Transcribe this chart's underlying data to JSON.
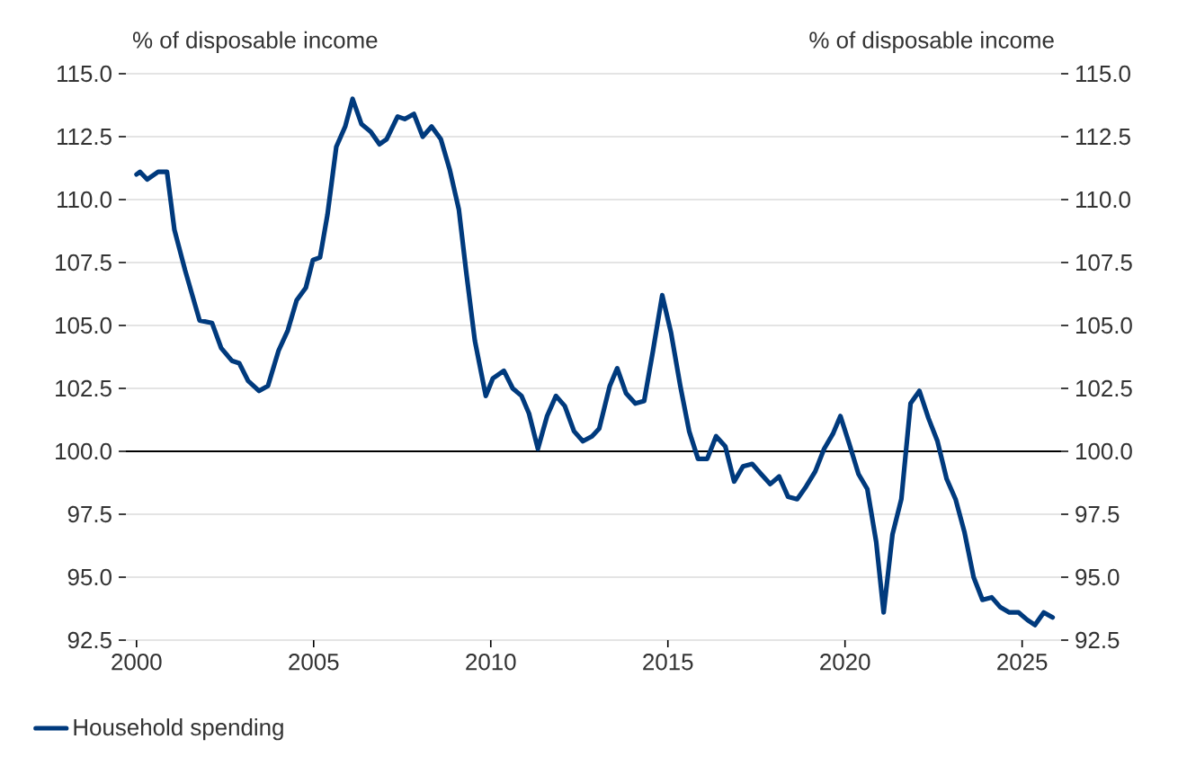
{
  "chart_data": {
    "type": "line",
    "ylabel": "% of disposable income",
    "y2label": "% of disposable income",
    "x": [
      2000.0,
      2000.1,
      2000.3,
      2000.61,
      2000.86,
      2001.07,
      2001.37,
      2001.78,
      2002.13,
      2002.39,
      2002.69,
      2002.9,
      2003.15,
      2003.46,
      2003.71,
      2004.01,
      2004.27,
      2004.52,
      2004.78,
      2004.98,
      2005.18,
      2005.39,
      2005.64,
      2005.89,
      2006.1,
      2006.35,
      2006.61,
      2006.86,
      2007.06,
      2007.37,
      2007.57,
      2007.83,
      2008.08,
      2008.33,
      2008.59,
      2008.84,
      2009.1,
      2009.3,
      2009.55,
      2009.86,
      2010.06,
      2010.37,
      2010.62,
      2010.87,
      2011.08,
      2011.33,
      2011.59,
      2011.84,
      2012.09,
      2012.35,
      2012.6,
      2012.86,
      2013.06,
      2013.36,
      2013.57,
      2013.82,
      2014.08,
      2014.33,
      2014.58,
      2014.84,
      2015.09,
      2015.35,
      2015.6,
      2015.85,
      2016.11,
      2016.36,
      2016.62,
      2016.87,
      2017.12,
      2017.38,
      2017.63,
      2017.89,
      2018.14,
      2018.39,
      2018.65,
      2018.9,
      2019.16,
      2019.41,
      2019.66,
      2019.87,
      2020.12,
      2020.38,
      2020.63,
      2020.88,
      2021.09,
      2021.34,
      2021.59,
      2021.85,
      2022.1,
      2022.36,
      2022.61,
      2022.87,
      2023.12,
      2023.37,
      2023.63,
      2023.88,
      2024.14,
      2024.39,
      2024.64,
      2024.9,
      2025.15,
      2025.36,
      2025.61,
      2025.86
    ],
    "series": [
      {
        "name": "Household spending",
        "color": "#003a7d",
        "values": [
          111.0,
          111.1,
          110.8,
          111.1,
          111.1,
          108.8,
          107.2,
          105.2,
          105.1,
          104.1,
          103.6,
          103.5,
          102.8,
          102.4,
          102.6,
          104.0,
          104.8,
          106.0,
          106.5,
          107.6,
          107.7,
          109.4,
          112.1,
          112.9,
          114.0,
          113.0,
          112.7,
          112.2,
          112.4,
          113.3,
          113.2,
          113.4,
          112.5,
          112.9,
          112.4,
          111.2,
          109.6,
          107.2,
          104.4,
          102.2,
          102.9,
          103.2,
          102.5,
          102.2,
          101.5,
          100.1,
          101.4,
          102.2,
          101.8,
          100.8,
          100.4,
          100.6,
          100.9,
          102.6,
          103.3,
          102.3,
          101.9,
          102.0,
          104.0,
          106.2,
          104.7,
          102.6,
          100.8,
          99.7,
          99.7,
          100.6,
          100.2,
          98.8,
          99.4,
          99.5,
          99.1,
          98.7,
          99.0,
          98.2,
          98.1,
          98.6,
          99.2,
          100.1,
          100.7,
          101.4,
          100.3,
          99.1,
          98.5,
          96.4,
          93.6,
          96.7,
          98.1,
          101.9,
          102.4,
          101.3,
          100.4,
          98.9,
          98.1,
          96.8,
          95.0,
          94.1,
          94.2,
          93.8,
          93.6,
          93.6,
          93.3,
          93.1,
          93.6,
          93.4
        ]
      }
    ],
    "xlim": [
      1999.7,
      2026.1
    ],
    "xticks": [
      2000,
      2005,
      2010,
      2015,
      2020,
      2025
    ],
    "ylim": [
      92.5,
      115
    ],
    "yticks": [
      92.5,
      {
        "value": 95,
        "label": "95.0"
      },
      97.5,
      {
        "value": 100,
        "label": "100.0"
      },
      102.5,
      {
        "value": 105,
        "label": "105.0"
      },
      107.5,
      {
        "value": 110,
        "label": "110.0"
      },
      112.5,
      {
        "value": 115,
        "label": "115.0"
      }
    ],
    "y2lim": [
      92.5,
      115
    ],
    "y2ticks": [
      92.5,
      {
        "value": 95,
        "label": "95.0"
      },
      97.5,
      {
        "value": 100,
        "label": "100.0"
      },
      102.5,
      {
        "value": 105,
        "label": "105.0"
      },
      107.5,
      {
        "value": 110,
        "label": "110.0"
      },
      112.5,
      {
        "value": 115,
        "label": "115.0"
      }
    ],
    "ref_lines": [
      {
        "axis": "y",
        "value": 100,
        "color": "#000000"
      }
    ],
    "grid": "y",
    "legend": "bottom left",
    "marker": "none",
    "line_style": "solid"
  }
}
